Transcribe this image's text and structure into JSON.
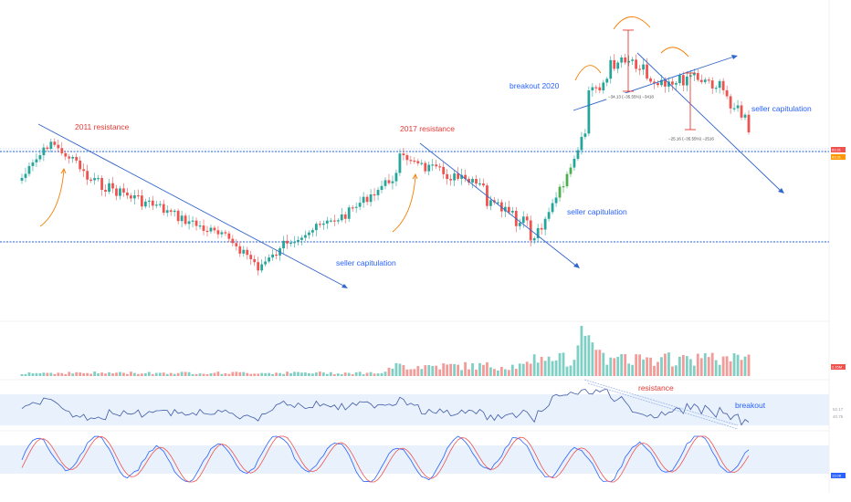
{
  "colors": {
    "up": "#26a69a",
    "down": "#ef5350",
    "breakout_up": "#4caf50",
    "trend": "#3366cc",
    "annotation_red": "#e53935",
    "annotation_blue": "#2962ff",
    "curve": "#f57c00",
    "support": "#90aee8",
    "rsi_band": "#e3eefb",
    "rsi_line": "#3f5aa8",
    "stoch_k": "#2962ff",
    "stoch_d": "#ef5350"
  },
  "chart_data": {
    "type": "candlestick",
    "interval": "monthly",
    "segments": [
      {
        "from": 0,
        "to": 8,
        "anchor": 195,
        "slope": -5.0,
        "wave": 1.0
      },
      {
        "from": 8,
        "to": 14,
        "anchor": 155,
        "slope": 4.0,
        "wave": 0.4
      },
      {
        "from": 14,
        "to": 18,
        "anchor": 172,
        "slope": 6.0,
        "wave": 1.0
      },
      {
        "from": 18,
        "to": 40,
        "anchor": 196,
        "slope": 1.6,
        "wave": 1.6
      },
      {
        "from": 40,
        "to": 58,
        "anchor": 232,
        "slope": 1.8,
        "wave": 1.4
      },
      {
        "from": 58,
        "to": 66,
        "anchor": 264,
        "slope": 4.0,
        "wave": 1.6
      },
      {
        "from": 66,
        "to": 72,
        "anchor": 290,
        "slope": -3.0,
        "wave": 1.0
      },
      {
        "from": 72,
        "to": 90,
        "anchor": 266,
        "slope": -1.8,
        "wave": 1.2
      },
      {
        "from": 90,
        "to": 104,
        "anchor": 232,
        "slope": -3.1,
        "wave": 1.2
      },
      {
        "from": 104,
        "to": 110,
        "anchor": 172,
        "slope": 0.8,
        "wave": 1.0
      },
      {
        "from": 110,
        "to": 128,
        "anchor": 182,
        "slope": 1.4,
        "wave": 1.6
      },
      {
        "from": 128,
        "to": 136,
        "anchor": 222,
        "slope": 2.0,
        "wave": 1.6
      },
      {
        "from": 136,
        "to": 140,
        "anchor": 248,
        "slope": -3.0,
        "wave": 1.2
      },
      {
        "from": 140,
        "to": 144,
        "anchor": 264,
        "slope": -6.0,
        "wave": 1.6
      },
      {
        "from": 144,
        "to": 148,
        "anchor": 238,
        "slope": -6.8,
        "wave": 1.0
      },
      {
        "from": 148,
        "to": 152,
        "anchor": 208,
        "slope": -7.0,
        "wave": 1.0
      },
      {
        "from": 152,
        "to": 156,
        "anchor": 178,
        "slope": -11.0,
        "wave": 1.6
      },
      {
        "from": 156,
        "to": 162,
        "anchor": 100,
        "slope": -2.5,
        "wave": 2.0
      },
      {
        "from": 162,
        "to": 166,
        "anchor": 72,
        "slope": -3.0,
        "wave": 2.0
      },
      {
        "from": 166,
        "to": 172,
        "anchor": 62,
        "slope": 2.0,
        "wave": 2.0
      },
      {
        "from": 172,
        "to": 180,
        "anchor": 86,
        "slope": 0.2,
        "wave": 2.0
      },
      {
        "from": 180,
        "to": 184,
        "anchor": 92,
        "slope": -3.0,
        "wave": 2.0
      },
      {
        "from": 184,
        "to": 192,
        "anchor": 80,
        "slope": 1.8,
        "wave": 2.0
      },
      {
        "from": 192,
        "to": 200,
        "anchor": 96,
        "slope": 5.0,
        "wave": 2.0
      },
      {
        "from": 200,
        "to": 201,
        "anchor": 145,
        "slope": 12.0,
        "wave": 0
      }
    ],
    "support_lines": [
      {
        "name": "upper",
        "value": 166
      },
      {
        "name": "lower",
        "value": 265
      }
    ],
    "annotations": {
      "resistance_2011": "2011 resistance",
      "resistance_2017": "2017 resistance",
      "breakout_2020": "breakout 2020",
      "seller_capitulation_1": "seller capitulation",
      "seller_capitulation_2": "seller capitulation",
      "seller_capitulation_3": "seller capitulation",
      "rsi_resistance": "resistance",
      "rsi_breakout": "breakout",
      "measure_1": "−34.13 (−35.55%) −3418",
      "measure_2": "−25.16 (−35.55%) −2516"
    },
    "price_tags": {
      "tag_1": "83.31",
      "tag_2": "83.31",
      "volume": "2.15M",
      "rsi_1": "52.17",
      "rsi_2": "40.75",
      "stoch": "13.08"
    }
  }
}
